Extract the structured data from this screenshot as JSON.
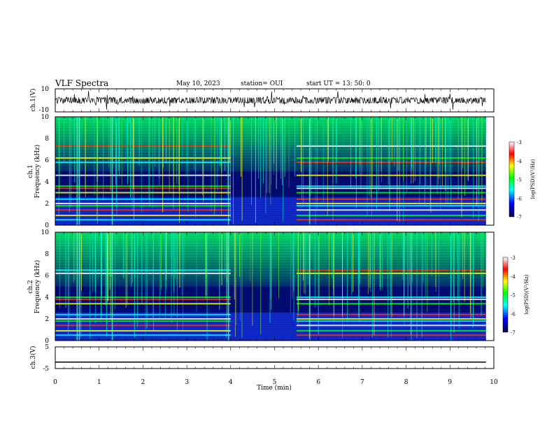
{
  "header": {
    "title": "VLF Spectra",
    "date": "May 10, 2023",
    "station": "station= OUI",
    "start": "start  UT =   13: 50: 0"
  },
  "colors": {
    "background": "#ffffff",
    "trace": "#000000",
    "spectrogram_base": "#000a70",
    "colormap": [
      "#08004c",
      "#0000ff",
      "#00ffff",
      "#00ff00",
      "#ffff00",
      "#ff0000",
      "#ffffff"
    ]
  },
  "chart_data": [
    {
      "type": "line",
      "panel": "ch1",
      "ylabel": "ch.1(V)",
      "ylim": [
        -10,
        10
      ],
      "yticks": [
        "10",
        "-10"
      ],
      "description_units": "V",
      "x_range_min": [
        0,
        9.82
      ],
      "amplitude_typical": 2.0
    },
    {
      "type": "heatmap",
      "panel": "ch1-spectrogram",
      "ylabel_top": "ch.1",
      "ylabel": "Frequency (kHz)",
      "ylim": [
        0,
        10
      ],
      "yticks": [
        "0",
        "2",
        "4",
        "6",
        "8",
        "10"
      ],
      "x_range_min": [
        0,
        9.82
      ],
      "colorbar": {
        "label": "log(PSD)(V²/Hz)",
        "range": [
          -7,
          -3
        ],
        "ticks": [
          "-3",
          "-4",
          "-5",
          "-6",
          "-7"
        ]
      },
      "bands_khz": [
        0.5,
        0.9,
        1.4,
        1.8,
        2.0,
        2.4,
        3.0,
        3.4,
        3.6,
        4.6,
        5.8,
        6.2,
        7.3
      ],
      "quiet_interval_min": [
        4.0,
        5.5
      ]
    },
    {
      "type": "heatmap",
      "panel": "ch2-spectrogram",
      "ylabel_top": "ch.2",
      "ylabel": "Frequency (kHz)",
      "ylim": [
        0,
        10
      ],
      "yticks": [
        "0",
        "2",
        "4",
        "6",
        "8",
        "10"
      ],
      "x_range_min": [
        0,
        9.82
      ],
      "colorbar": {
        "label": "log(PSD)(V²/Hz)",
        "range": [
          -7,
          -3
        ],
        "ticks": [
          "-3",
          "-4",
          "-5",
          "-6",
          "-7"
        ]
      },
      "bands_khz": [
        0.5,
        0.9,
        1.4,
        1.8,
        2.0,
        2.4,
        3.4,
        3.8,
        4.0,
        6.2,
        6.5
      ],
      "quiet_interval_min": [
        4.0,
        5.5
      ]
    },
    {
      "type": "line",
      "panel": "ch3",
      "ylabel": "ch.3(V)",
      "ylim": [
        -5,
        5
      ],
      "yticks": [
        "5",
        "0",
        "-5"
      ],
      "constant_value": -2
    }
  ],
  "xaxis": {
    "label": "Time (min)",
    "ticks": [
      "0",
      "1",
      "2",
      "3",
      "4",
      "5",
      "6",
      "7",
      "8",
      "9",
      "10"
    ],
    "range": [
      0,
      10
    ]
  }
}
